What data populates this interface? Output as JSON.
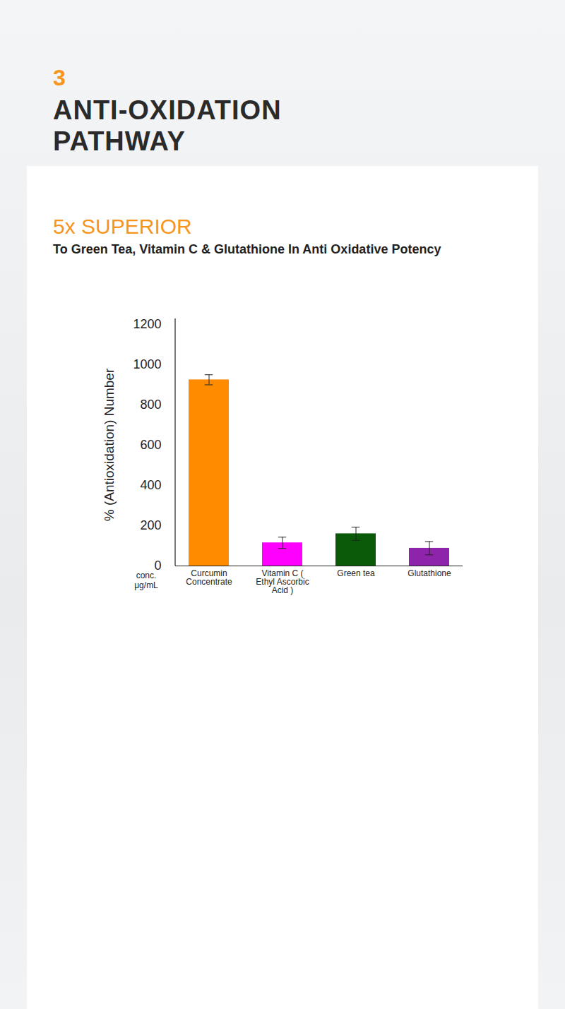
{
  "chart_data": {
    "type": "bar",
    "section_number": "3",
    "title": "ANTI-OXIDATION PATHWAY",
    "headline": "5x SUPERIOR",
    "subtitle": "To Green Tea, Vitamin C & Glutathione In Anti Oxidative Potency",
    "ylabel": "% (Antioxidation) Number",
    "xlabel": "conc. μg/mL",
    "categories": [
      "Curcumin Concentrate",
      "Vitamin C ( Ethyl Ascorbic Acid )",
      "Green tea",
      "Glutathione"
    ],
    "values": [
      925,
      115,
      160,
      88
    ],
    "errors": [
      25,
      28,
      33,
      33
    ],
    "colors": [
      "#ff8c00",
      "#ff00ff",
      "#0a5a0a",
      "#8e24aa"
    ],
    "ylim": [
      0,
      1200
    ],
    "yticks": [
      0,
      200,
      400,
      600,
      800,
      1000,
      1200
    ],
    "grid": false
  }
}
